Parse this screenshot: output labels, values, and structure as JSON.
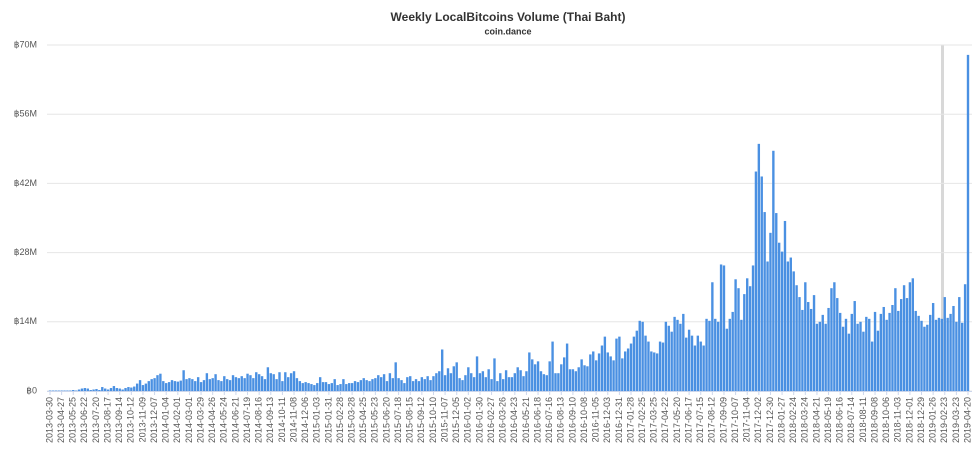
{
  "chart_data": {
    "type": "bar",
    "title": "Weekly LocalBitcoins Volume (Thai Baht)",
    "subtitle": "coin.dance",
    "color": "#4a90e2",
    "grid": true,
    "ylim": [
      0,
      70000000
    ],
    "yticks": [
      {
        "value": 0,
        "label": "฿0"
      },
      {
        "value": 14000000,
        "label": "฿14M"
      },
      {
        "value": 28000000,
        "label": "฿28M"
      },
      {
        "value": 42000000,
        "label": "฿42M"
      },
      {
        "value": 56000000,
        "label": "฿56M"
      },
      {
        "value": 70000000,
        "label": "฿70M"
      }
    ],
    "categories": [
      "2013-03-30",
      null,
      null,
      null,
      "2013-04-27",
      null,
      null,
      null,
      "2013-05-25",
      null,
      null,
      null,
      "2013-06-22",
      null,
      null,
      null,
      "2013-07-20",
      null,
      null,
      null,
      "2013-08-17",
      null,
      null,
      null,
      "2013-09-14",
      null,
      null,
      null,
      "2013-10-12",
      null,
      null,
      null,
      "2013-11-09",
      null,
      null,
      null,
      "2013-12-07",
      null,
      null,
      null,
      "2014-01-04",
      null,
      null,
      null,
      "2014-02-01",
      null,
      null,
      null,
      "2014-03-01",
      null,
      null,
      null,
      "2014-03-29",
      null,
      null,
      null,
      "2014-04-26",
      null,
      null,
      null,
      "2014-05-24",
      null,
      null,
      null,
      "2014-06-21",
      null,
      null,
      null,
      "2014-07-19",
      null,
      null,
      null,
      "2014-08-16",
      null,
      null,
      null,
      "2014-09-13",
      null,
      null,
      null,
      "2014-10-11",
      null,
      null,
      null,
      "2014-11-08",
      null,
      null,
      null,
      "2014-12-06",
      null,
      null,
      null,
      "2015-01-03",
      null,
      null,
      null,
      "2015-01-31",
      null,
      null,
      null,
      "2015-02-28",
      null,
      null,
      null,
      "2015-03-28",
      null,
      null,
      null,
      "2015-04-25",
      null,
      null,
      null,
      "2015-05-23",
      null,
      null,
      null,
      "2015-06-20",
      null,
      null,
      null,
      "2015-07-18",
      null,
      null,
      null,
      "2015-08-15",
      null,
      null,
      null,
      "2015-09-12",
      null,
      null,
      null,
      "2015-10-10",
      null,
      null,
      null,
      "2015-11-07",
      null,
      null,
      null,
      "2015-12-05",
      null,
      null,
      null,
      "2016-01-02",
      null,
      null,
      null,
      "2016-01-30",
      null,
      null,
      null,
      "2016-02-27",
      null,
      null,
      null,
      "2016-03-26",
      null,
      null,
      null,
      "2016-04-23",
      null,
      null,
      null,
      "2016-05-21",
      null,
      null,
      null,
      "2016-06-18",
      null,
      null,
      null,
      "2016-07-16",
      null,
      null,
      null,
      "2016-08-13",
      null,
      null,
      null,
      "2016-09-10",
      null,
      null,
      null,
      "2016-10-08",
      null,
      null,
      null,
      "2016-11-05",
      null,
      null,
      null,
      "2016-12-03",
      null,
      null,
      null,
      "2016-12-31",
      null,
      null,
      null,
      "2017-01-28",
      null,
      null,
      null,
      "2017-02-25",
      null,
      null,
      null,
      "2017-03-25",
      null,
      null,
      null,
      "2017-04-22",
      null,
      null,
      null,
      "2017-05-20",
      null,
      null,
      null,
      "2017-06-17",
      null,
      null,
      null,
      "2017-07-15",
      null,
      null,
      null,
      "2017-08-12",
      null,
      null,
      null,
      "2017-09-09",
      null,
      null,
      null,
      "2017-10-07",
      null,
      null,
      null,
      "2017-11-04",
      null,
      null,
      null,
      "2017-12-02",
      null,
      null,
      null,
      "2017-12-30",
      null,
      null,
      null,
      "2018-01-27",
      null,
      null,
      null,
      "2018-02-24",
      null,
      null,
      null,
      "2018-03-24",
      null,
      null,
      null,
      "2018-04-21",
      null,
      null,
      null,
      "2018-05-19",
      null,
      null,
      null,
      "2018-06-16",
      null,
      null,
      null,
      "2018-07-14",
      null,
      null,
      null,
      "2018-08-11",
      null,
      null,
      null,
      "2018-09-08",
      null,
      null,
      null,
      "2018-10-06",
      null,
      null,
      null,
      "2018-11-03",
      null,
      null,
      null,
      "2018-12-01",
      null,
      null,
      null,
      "2018-12-29",
      null,
      null,
      null,
      "2019-01-26",
      null,
      null,
      null,
      "2019-02-23",
      null,
      null,
      null,
      "2019-03-23",
      null,
      null,
      null,
      "2019-04-20"
    ],
    "values": [
      100000.0,
      100000.0,
      100000.0,
      100000.0,
      100000.0,
      100000.0,
      100000.0,
      100000.0,
      200000.0,
      100000.0,
      300000.0,
      500000.0,
      600000.0,
      500000.0,
      200000.0,
      300000.0,
      400000.0,
      200000.0,
      800000.0,
      500000.0,
      300000.0,
      600000.0,
      1000000.0,
      600000.0,
      500000.0,
      300000.0,
      600000.0,
      800000.0,
      700000.0,
      900000.0,
      1500000.0,
      2200000.0,
      1200000.0,
      1500000.0,
      2000000.0,
      2400000.0,
      2600000.0,
      3200000.0,
      3500000.0,
      2000000.0,
      1600000.0,
      1800000.0,
      2200000.0,
      2000000.0,
      1900000.0,
      2100000.0,
      4200000.0,
      2400000.0,
      2600000.0,
      2400000.0,
      2000000.0,
      2800000.0,
      1800000.0,
      2200000.0,
      3600000.0,
      2400000.0,
      2600000.0,
      3400000.0,
      2200000.0,
      2000000.0,
      3000000.0,
      2400000.0,
      2200000.0,
      3200000.0,
      2800000.0,
      2600000.0,
      3000000.0,
      2600000.0,
      3500000.0,
      3200000.0,
      2600000.0,
      3800000.0,
      3400000.0,
      3000000.0,
      2400000.0,
      4800000.0,
      3600000.0,
      3400000.0,
      2400000.0,
      3800000.0,
      2000000.0,
      3800000.0,
      2800000.0,
      3600000.0,
      4000000.0,
      2600000.0,
      2000000.0,
      1600000.0,
      1800000.0,
      1600000.0,
      1400000.0,
      1200000.0,
      1600000.0,
      2800000.0,
      1800000.0,
      1800000.0,
      1400000.0,
      1600000.0,
      2400000.0,
      1200000.0,
      1400000.0,
      2400000.0,
      1400000.0,
      1600000.0,
      1600000.0,
      2000000.0,
      1800000.0,
      2200000.0,
      2600000.0,
      2200000.0,
      2000000.0,
      2400000.0,
      2600000.0,
      3200000.0,
      2800000.0,
      3400000.0,
      2000000.0,
      3600000.0,
      2600000.0,
      5800000.0,
      2600000.0,
      2200000.0,
      1600000.0,
      2800000.0,
      3000000.0,
      2000000.0,
      2400000.0,
      2000000.0,
      2800000.0,
      2400000.0,
      3000000.0,
      2200000.0,
      3000000.0,
      3600000.0,
      4000000.0,
      8400000.0,
      3200000.0,
      4600000.0,
      3600000.0,
      5000000.0,
      5800000.0,
      2600000.0,
      2200000.0,
      3200000.0,
      4800000.0,
      3600000.0,
      2800000.0,
      7000000.0,
      3600000.0,
      4000000.0,
      2800000.0,
      4400000.0,
      2400000.0,
      6600000.0,
      2000000.0,
      3600000.0,
      2400000.0,
      4200000.0,
      2800000.0,
      2800000.0,
      3600000.0,
      4800000.0,
      4200000.0,
      3000000.0,
      4000000.0,
      7800000.0,
      6400000.0,
      5400000.0,
      6000000.0,
      4000000.0,
      3400000.0,
      3200000.0,
      6000000.0,
      10000000.0,
      3600000.0,
      3600000.0,
      5400000.0,
      6800000.0,
      9600000.0,
      4400000.0,
      4400000.0,
      4000000.0,
      4800000.0,
      6400000.0,
      5200000.0,
      5000000.0,
      7400000.0,
      8000000.0,
      6200000.0,
      7600000.0,
      9200000.0,
      11000000.0,
      7800000.0,
      7000000.0,
      6200000.0,
      10600000.0,
      11000000.0,
      6600000.0,
      8000000.0,
      8600000.0,
      9600000.0,
      11000000.0,
      12200000.0,
      14200000.0,
      14000000.0,
      11200000.0,
      10000000.0,
      8000000.0,
      7800000.0,
      7600000.0,
      10000000.0,
      9800000.0,
      14000000.0,
      13200000.0,
      12000000.0,
      15000000.0,
      14400000.0,
      13600000.0,
      15600000.0,
      10800000.0,
      12400000.0,
      11200000.0,
      9200000.0,
      11200000.0,
      10000000.0,
      9200000.0,
      14600000.0,
      14200000.0,
      22000000.0,
      14600000.0,
      14000000.0,
      25600000.0,
      25400000.0,
      12600000.0,
      14600000.0,
      16000000.0,
      22600000.0,
      20800000.0,
      14400000.0,
      19600000.0,
      22800000.0,
      21200000.0,
      25400000.0,
      44400000.0,
      50000000.0,
      43400000.0,
      36200000.0,
      26200000.0,
      32000000.0,
      48600000.0,
      36000000.0,
      30000000.0,
      28200000.0,
      34400000.0,
      26200000.0,
      27000000.0,
      24200000.0,
      21400000.0,
      19000000.0,
      16400000.0,
      22000000.0,
      18000000.0,
      16600000.0,
      19400000.0,
      13600000.0,
      14000000.0,
      15400000.0,
      13600000.0,
      16800000.0,
      20800000.0,
      22000000.0,
      18800000.0,
      15800000.0,
      13000000.0,
      14600000.0,
      11600000.0,
      15600000.0,
      18200000.0,
      13600000.0,
      14000000.0,
      12000000.0,
      15000000.0,
      14600000.0,
      10000000.0,
      16000000.0,
      12200000.0,
      15600000.0,
      17000000.0,
      14400000.0,
      15800000.0,
      17400000.0,
      20800000.0,
      16200000.0,
      18600000.0,
      21400000.0,
      18800000.0,
      22000000.0,
      22800000.0,
      16200000.0,
      15200000.0,
      14200000.0,
      13000000.0,
      13400000.0,
      15400000.0,
      17800000.0,
      14400000.0,
      14800000.0,
      14600000.0,
      19000000.0,
      14800000.0,
      15600000.0,
      17200000.0,
      14000000.0,
      19000000.0,
      13800000.0,
      21600000.0,
      68000000.0
    ]
  }
}
